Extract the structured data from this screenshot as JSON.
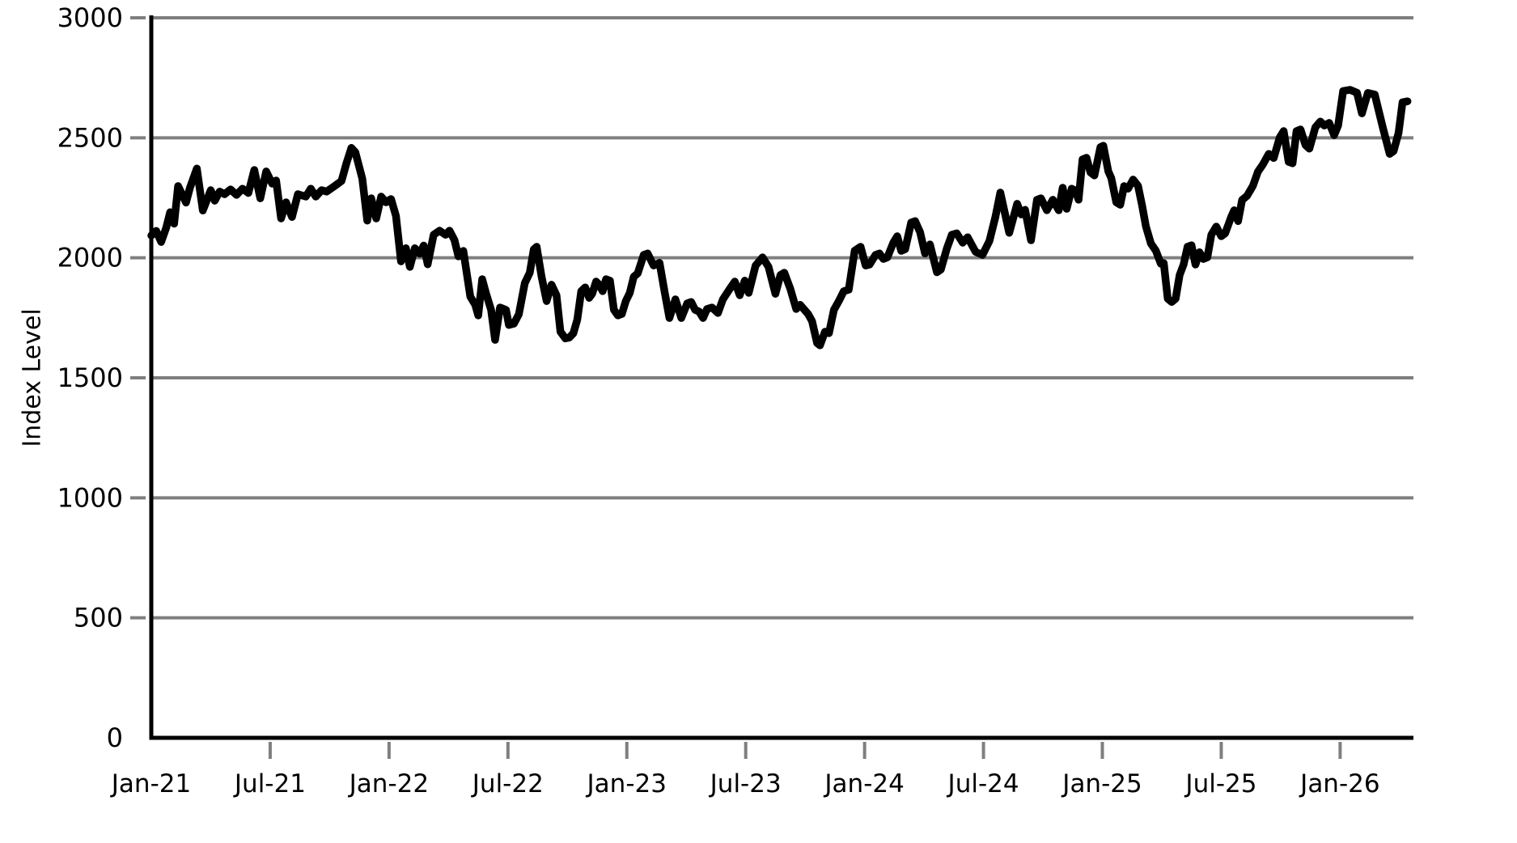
{
  "chart_data": {
    "type": "line",
    "title": "",
    "xlabel": "",
    "ylabel": "Index Level",
    "legend": null,
    "grid": true,
    "background_color": "#ffffff",
    "line_color": "#000000",
    "grid_color": "#7f7f7f",
    "tick_color": "#7f7f7f",
    "axis_color": "#000000",
    "y_range": [
      0,
      3000
    ],
    "y_ticks": [
      0,
      500,
      1000,
      1500,
      2000,
      2500,
      3000
    ],
    "x_range_months": [
      0,
      63.7
    ],
    "x_ticks": [
      {
        "m": 0,
        "label": "Jan-21"
      },
      {
        "m": 6,
        "label": "Jul-21"
      },
      {
        "m": 12,
        "label": "Jan-22"
      },
      {
        "m": 18,
        "label": "Jul-22"
      },
      {
        "m": 24,
        "label": "Jan-23"
      },
      {
        "m": 30,
        "label": "Jul-23"
      },
      {
        "m": 36,
        "label": "Jan-24"
      },
      {
        "m": 42,
        "label": "Jul-24"
      },
      {
        "m": 48,
        "label": "Jan-25"
      },
      {
        "m": 54,
        "label": "Jul-25"
      },
      {
        "m": 60,
        "label": "Jan-26"
      }
    ],
    "series": [
      {
        "name": "index_level",
        "points": [
          [
            0,
            2093
          ],
          [
            0.25,
            2112
          ],
          [
            0.5,
            2066
          ],
          [
            0.75,
            2125
          ],
          [
            0.95,
            2190
          ],
          [
            1.15,
            2142
          ],
          [
            1.35,
            2299
          ],
          [
            1.55,
            2265
          ],
          [
            1.75,
            2230
          ],
          [
            1.95,
            2292
          ],
          [
            2.3,
            2372
          ],
          [
            2.6,
            2197
          ],
          [
            3.0,
            2282
          ],
          [
            3.2,
            2238
          ],
          [
            3.45,
            2276
          ],
          [
            3.7,
            2265
          ],
          [
            4.0,
            2285
          ],
          [
            4.3,
            2262
          ],
          [
            4.6,
            2288
          ],
          [
            4.9,
            2270
          ],
          [
            5.2,
            2366
          ],
          [
            5.5,
            2248
          ],
          [
            5.8,
            2360
          ],
          [
            6.1,
            2309
          ],
          [
            6.3,
            2322
          ],
          [
            6.55,
            2164
          ],
          [
            6.8,
            2231
          ],
          [
            7.1,
            2170
          ],
          [
            7.4,
            2265
          ],
          [
            7.8,
            2255
          ],
          [
            8.05,
            2288
          ],
          [
            8.3,
            2255
          ],
          [
            8.6,
            2282
          ],
          [
            8.85,
            2276
          ],
          [
            9.25,
            2299
          ],
          [
            9.6,
            2320
          ],
          [
            9.85,
            2394
          ],
          [
            10.1,
            2458
          ],
          [
            10.3,
            2440
          ],
          [
            10.65,
            2330
          ],
          [
            10.9,
            2155
          ],
          [
            11.1,
            2248
          ],
          [
            11.35,
            2164
          ],
          [
            11.6,
            2255
          ],
          [
            11.85,
            2231
          ],
          [
            12.1,
            2245
          ],
          [
            12.35,
            2175
          ],
          [
            12.6,
            1985
          ],
          [
            12.85,
            2040
          ],
          [
            13.05,
            1962
          ],
          [
            13.3,
            2040
          ],
          [
            13.55,
            2017
          ],
          [
            13.75,
            2051
          ],
          [
            13.95,
            1973
          ],
          [
            14.25,
            2096
          ],
          [
            14.55,
            2113
          ],
          [
            14.85,
            2096
          ],
          [
            15.05,
            2113
          ],
          [
            15.3,
            2074
          ],
          [
            15.5,
            2006
          ],
          [
            15.75,
            2029
          ],
          [
            16.1,
            1838
          ],
          [
            16.35,
            1804
          ],
          [
            16.5,
            1760
          ],
          [
            16.7,
            1911
          ],
          [
            16.9,
            1850
          ],
          [
            17.15,
            1783
          ],
          [
            17.35,
            1658
          ],
          [
            17.6,
            1793
          ],
          [
            17.9,
            1783
          ],
          [
            18.05,
            1720
          ],
          [
            18.3,
            1726
          ],
          [
            18.55,
            1765
          ],
          [
            18.85,
            1894
          ],
          [
            19.1,
            1938
          ],
          [
            19.3,
            2035
          ],
          [
            19.45,
            2046
          ],
          [
            19.7,
            1921
          ],
          [
            19.95,
            1820
          ],
          [
            20.2,
            1888
          ],
          [
            20.45,
            1844
          ],
          [
            20.65,
            1692
          ],
          [
            20.9,
            1664
          ],
          [
            21.1,
            1668
          ],
          [
            21.3,
            1685
          ],
          [
            21.5,
            1742
          ],
          [
            21.7,
            1861
          ],
          [
            21.9,
            1877
          ],
          [
            22.1,
            1833
          ],
          [
            22.25,
            1850
          ],
          [
            22.45,
            1901
          ],
          [
            22.6,
            1888
          ],
          [
            22.78,
            1861
          ],
          [
            22.95,
            1911
          ],
          [
            23.15,
            1905
          ],
          [
            23.35,
            1783
          ],
          [
            23.55,
            1760
          ],
          [
            23.75,
            1766
          ],
          [
            23.95,
            1820
          ],
          [
            24.15,
            1854
          ],
          [
            24.35,
            1921
          ],
          [
            24.55,
            1935
          ],
          [
            24.85,
            2012
          ],
          [
            25.05,
            2018
          ],
          [
            25.35,
            1968
          ],
          [
            25.65,
            1979
          ],
          [
            25.9,
            1861
          ],
          [
            26.15,
            1749
          ],
          [
            26.45,
            1827
          ],
          [
            26.75,
            1749
          ],
          [
            27.05,
            1810
          ],
          [
            27.25,
            1816
          ],
          [
            27.45,
            1783
          ],
          [
            27.65,
            1776
          ],
          [
            27.85,
            1749
          ],
          [
            28.05,
            1787
          ],
          [
            28.3,
            1793
          ],
          [
            28.6,
            1770
          ],
          [
            28.85,
            1827
          ],
          [
            29.2,
            1871
          ],
          [
            29.45,
            1901
          ],
          [
            29.7,
            1844
          ],
          [
            29.95,
            1905
          ],
          [
            30.15,
            1854
          ],
          [
            30.5,
            1968
          ],
          [
            30.85,
            2002
          ],
          [
            31.15,
            1962
          ],
          [
            31.5,
            1850
          ],
          [
            31.75,
            1928
          ],
          [
            31.95,
            1938
          ],
          [
            32.25,
            1871
          ],
          [
            32.55,
            1787
          ],
          [
            32.75,
            1804
          ],
          [
            33.15,
            1766
          ],
          [
            33.35,
            1736
          ],
          [
            33.6,
            1645
          ],
          [
            33.75,
            1635
          ],
          [
            34.0,
            1692
          ],
          [
            34.2,
            1686
          ],
          [
            34.45,
            1783
          ],
          [
            34.7,
            1820
          ],
          [
            34.95,
            1861
          ],
          [
            35.2,
            1867
          ],
          [
            35.5,
            2030
          ],
          [
            35.8,
            2046
          ],
          [
            36.05,
            1968
          ],
          [
            36.25,
            1972
          ],
          [
            36.55,
            2012
          ],
          [
            36.75,
            2018
          ],
          [
            36.95,
            1995
          ],
          [
            37.15,
            2002
          ],
          [
            37.45,
            2063
          ],
          [
            37.65,
            2090
          ],
          [
            37.85,
            2029
          ],
          [
            38.05,
            2036
          ],
          [
            38.35,
            2147
          ],
          [
            38.55,
            2153
          ],
          [
            38.8,
            2107
          ],
          [
            39.05,
            2018
          ],
          [
            39.3,
            2056
          ],
          [
            39.65,
            1940
          ],
          [
            39.85,
            1951
          ],
          [
            40.15,
            2039
          ],
          [
            40.4,
            2096
          ],
          [
            40.65,
            2102
          ],
          [
            40.95,
            2063
          ],
          [
            41.2,
            2086
          ],
          [
            41.6,
            2025
          ],
          [
            41.95,
            2012
          ],
          [
            42.3,
            2070
          ],
          [
            42.6,
            2170
          ],
          [
            42.85,
            2272
          ],
          [
            43.3,
            2104
          ],
          [
            43.7,
            2225
          ],
          [
            43.9,
            2181
          ],
          [
            44.1,
            2200
          ],
          [
            44.4,
            2073
          ],
          [
            44.7,
            2242
          ],
          [
            44.9,
            2248
          ],
          [
            45.2,
            2198
          ],
          [
            45.5,
            2242
          ],
          [
            45.8,
            2198
          ],
          [
            46.0,
            2292
          ],
          [
            46.2,
            2204
          ],
          [
            46.45,
            2288
          ],
          [
            46.65,
            2280
          ],
          [
            46.8,
            2242
          ],
          [
            47.0,
            2410
          ],
          [
            47.2,
            2417
          ],
          [
            47.4,
            2356
          ],
          [
            47.6,
            2343
          ],
          [
            47.9,
            2461
          ],
          [
            48.05,
            2467
          ],
          [
            48.3,
            2360
          ],
          [
            48.45,
            2333
          ],
          [
            48.7,
            2231
          ],
          [
            48.9,
            2221
          ],
          [
            49.1,
            2299
          ],
          [
            49.3,
            2288
          ],
          [
            49.55,
            2326
          ],
          [
            49.8,
            2300
          ],
          [
            50.0,
            2220
          ],
          [
            50.2,
            2130
          ],
          [
            50.45,
            2060
          ],
          [
            50.7,
            2030
          ],
          [
            50.95,
            1975
          ],
          [
            51.1,
            1978
          ],
          [
            51.3,
            1830
          ],
          [
            51.5,
            1816
          ],
          [
            51.7,
            1830
          ],
          [
            51.9,
            1928
          ],
          [
            52.1,
            1972
          ],
          [
            52.3,
            2046
          ],
          [
            52.5,
            2052
          ],
          [
            52.7,
            1972
          ],
          [
            52.9,
            2023
          ],
          [
            53.1,
            1995
          ],
          [
            53.3,
            2002
          ],
          [
            53.5,
            2096
          ],
          [
            53.75,
            2130
          ],
          [
            54.0,
            2090
          ],
          [
            54.2,
            2102
          ],
          [
            54.5,
            2170
          ],
          [
            54.65,
            2198
          ],
          [
            54.85,
            2153
          ],
          [
            55.05,
            2241
          ],
          [
            55.3,
            2258
          ],
          [
            55.6,
            2300
          ],
          [
            55.85,
            2359
          ],
          [
            56.1,
            2389
          ],
          [
            56.4,
            2433
          ],
          [
            56.65,
            2416
          ],
          [
            56.95,
            2501
          ],
          [
            57.15,
            2528
          ],
          [
            57.4,
            2400
          ],
          [
            57.6,
            2394
          ],
          [
            57.8,
            2528
          ],
          [
            58.0,
            2535
          ],
          [
            58.25,
            2470
          ],
          [
            58.45,
            2455
          ],
          [
            58.75,
            2544
          ],
          [
            59.0,
            2568
          ],
          [
            59.2,
            2551
          ],
          [
            59.45,
            2562
          ],
          [
            59.7,
            2511
          ],
          [
            59.9,
            2551
          ],
          [
            60.15,
            2695
          ],
          [
            60.5,
            2700
          ],
          [
            60.85,
            2688
          ],
          [
            61.1,
            2602
          ],
          [
            61.4,
            2687
          ],
          [
            61.75,
            2680
          ],
          [
            62.15,
            2545
          ],
          [
            62.5,
            2433
          ],
          [
            62.7,
            2445
          ],
          [
            62.95,
            2520
          ],
          [
            63.15,
            2648
          ],
          [
            63.4,
            2652
          ]
        ]
      }
    ]
  }
}
